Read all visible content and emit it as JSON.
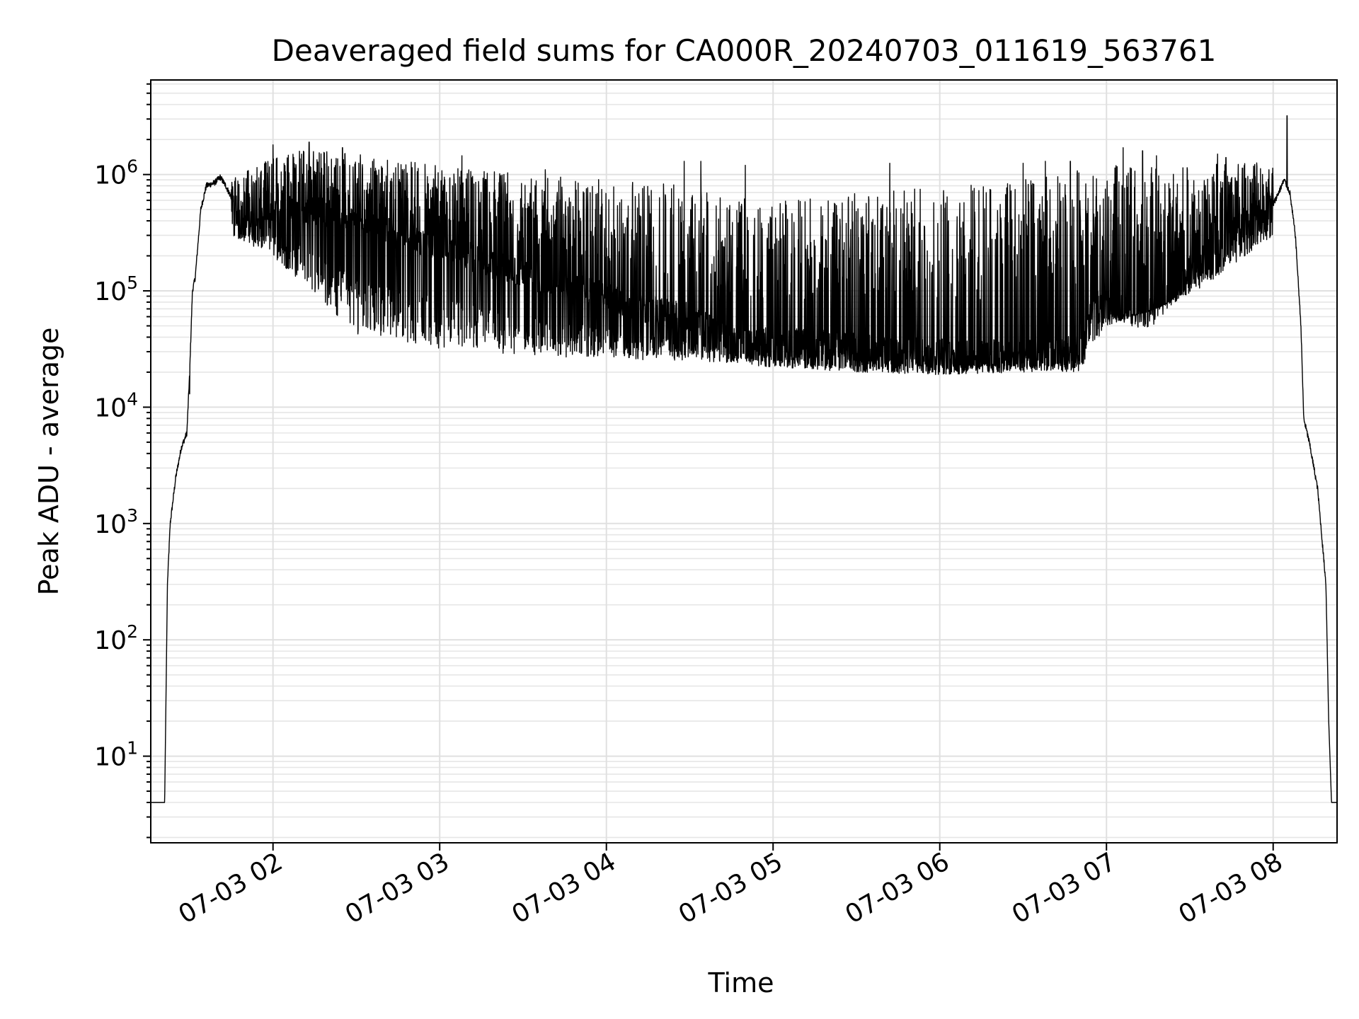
{
  "chart_data": {
    "type": "line",
    "title": "Deaveraged field sums for CA000R_20240703_011619_563761",
    "xlabel": "Time",
    "ylabel": "Peak ADU - average",
    "yscale": "log",
    "ylim": [
      1.8,
      6500000
    ],
    "xlim": [
      "07-03 01:16",
      "07-03 08:23"
    ],
    "grid": true,
    "legend": "none",
    "line_color": "#000000",
    "x_ticks": [
      {
        "label": "07-03 02",
        "value": "07-03 02:00"
      },
      {
        "label": "07-03 03",
        "value": "07-03 03:00"
      },
      {
        "label": "07-03 04",
        "value": "07-03 04:00"
      },
      {
        "label": "07-03 05",
        "value": "07-03 05:00"
      },
      {
        "label": "07-03 06",
        "value": "07-03 06:00"
      },
      {
        "label": "07-03 07",
        "value": "07-03 07:00"
      },
      {
        "label": "07-03 08",
        "value": "07-03 08:00"
      }
    ],
    "y_ticks": [
      {
        "base": "10",
        "exp": "1",
        "value": 10
      },
      {
        "base": "10",
        "exp": "2",
        "value": 100
      },
      {
        "base": "10",
        "exp": "3",
        "value": 1000
      },
      {
        "base": "10",
        "exp": "4",
        "value": 10000
      },
      {
        "base": "10",
        "exp": "5",
        "value": 100000
      },
      {
        "base": "10",
        "exp": "6",
        "value": 1000000
      }
    ],
    "series": [
      {
        "baseline": [
          [
            "07-03 01:16",
            4
          ],
          [
            "07-03 01:21",
            4
          ],
          [
            "07-03 01:22",
            300
          ],
          [
            "07-03 01:23",
            1000
          ],
          [
            "07-03 01:25",
            2500
          ],
          [
            "07-03 01:27",
            4500
          ],
          [
            "07-03 01:29",
            6000
          ],
          [
            "07-03 01:30",
            20000
          ],
          [
            "07-03 01:31",
            100000
          ],
          [
            "07-03 01:32",
            130000
          ],
          [
            "07-03 01:34",
            500000
          ],
          [
            "07-03 01:36",
            800000
          ],
          [
            "07-03 01:39",
            850000
          ],
          [
            "07-03 01:41",
            950000
          ],
          [
            "07-03 01:43",
            800000
          ],
          [
            "07-03 01:48",
            450000
          ],
          [
            "07-03 01:55",
            400000
          ],
          [
            "07-03 02:05",
            500000
          ],
          [
            "07-03 02:15",
            500000
          ],
          [
            "07-03 02:30",
            400000
          ],
          [
            "07-03 02:45",
            300000
          ],
          [
            "07-03 03:00",
            250000
          ],
          [
            "07-03 03:15",
            180000
          ],
          [
            "07-03 03:30",
            140000
          ],
          [
            "07-03 03:45",
            110000
          ],
          [
            "07-03 04:00",
            90000
          ],
          [
            "07-03 04:15",
            70000
          ],
          [
            "07-03 04:30",
            60000
          ],
          [
            "07-03 04:45",
            38000
          ],
          [
            "07-03 05:00",
            36000
          ],
          [
            "07-03 05:15",
            35000
          ],
          [
            "07-03 05:30",
            33000
          ],
          [
            "07-03 05:45",
            30000
          ],
          [
            "07-03 06:00",
            30000
          ],
          [
            "07-03 06:15",
            29000
          ],
          [
            "07-03 06:30",
            28000
          ],
          [
            "07-03 06:45",
            30000
          ],
          [
            "07-03 06:52",
            35000
          ],
          [
            "07-03 06:55",
            80000
          ],
          [
            "07-03 07:00",
            75000
          ],
          [
            "07-03 07:10",
            65000
          ],
          [
            "07-03 07:15",
            65000
          ],
          [
            "07-03 07:20",
            75000
          ],
          [
            "07-03 07:30",
            150000
          ],
          [
            "07-03 07:40",
            250000
          ],
          [
            "07-03 07:50",
            400000
          ],
          [
            "07-03 08:00",
            550000
          ],
          [
            "07-03 08:04",
            900000
          ],
          [
            "07-03 08:06",
            700000
          ],
          [
            "07-03 08:08",
            300000
          ],
          [
            "07-03 08:10",
            50000
          ],
          [
            "07-03 08:11",
            8000
          ],
          [
            "07-03 08:13",
            5000
          ],
          [
            "07-03 08:16",
            2000
          ],
          [
            "07-03 08:19",
            300
          ],
          [
            "07-03 08:20",
            20
          ],
          [
            "07-03 08:21",
            4
          ],
          [
            "07-03 08:23",
            4
          ]
        ],
        "envelope_top": [
          [
            "07-03 01:45",
            900000
          ],
          [
            "07-03 02:00",
            1500000
          ],
          [
            "07-03 02:15",
            1700000
          ],
          [
            "07-03 02:30",
            1500000
          ],
          [
            "07-03 03:00",
            1200000
          ],
          [
            "07-03 03:30",
            1000000
          ],
          [
            "07-03 04:00",
            900000
          ],
          [
            "07-03 04:30",
            800000
          ],
          [
            "07-03 05:00",
            600000
          ],
          [
            "07-03 05:30",
            700000
          ],
          [
            "07-03 06:00",
            800000
          ],
          [
            "07-03 06:30",
            900000
          ],
          [
            "07-03 07:00",
            1200000
          ],
          [
            "07-03 07:30",
            1200000
          ],
          [
            "07-03 08:00",
            1300000
          ]
        ],
        "envelope_bottom": [
          [
            "07-03 01:45",
            300000
          ],
          [
            "07-03 02:00",
            200000
          ],
          [
            "07-03 02:15",
            90000
          ],
          [
            "07-03 02:30",
            42000
          ],
          [
            "07-03 03:00",
            32000
          ],
          [
            "07-03 03:30",
            28000
          ],
          [
            "07-03 04:00",
            26000
          ],
          [
            "07-03 04:30",
            25000
          ],
          [
            "07-03 05:00",
            22000
          ],
          [
            "07-03 05:30",
            20000
          ],
          [
            "07-03 06:00",
            19000
          ],
          [
            "07-03 06:30",
            20000
          ],
          [
            "07-03 06:50",
            20000
          ],
          [
            "07-03 07:00",
            50000
          ],
          [
            "07-03 07:30",
            90000
          ],
          [
            "07-03 08:00",
            300000
          ]
        ],
        "spikes": [
          [
            "07-03 01:30",
            13000
          ],
          [
            "07-03 02:00",
            1800000
          ],
          [
            "07-03 02:13",
            1900000
          ],
          [
            "07-03 02:25",
            1700000
          ],
          [
            "07-03 03:08",
            1450000
          ],
          [
            "07-03 03:38",
            1100000
          ],
          [
            "07-03 04:28",
            1300000
          ],
          [
            "07-03 04:34",
            1300000
          ],
          [
            "07-03 04:50",
            1200000
          ],
          [
            "07-03 05:42",
            1250000
          ],
          [
            "07-03 06:30",
            1250000
          ],
          [
            "07-03 06:38",
            1300000
          ],
          [
            "07-03 06:47",
            1300000
          ],
          [
            "07-03 07:06",
            1700000
          ],
          [
            "07-03 07:13",
            1600000
          ],
          [
            "07-03 07:18",
            1450000
          ],
          [
            "07-03 07:40",
            1500000
          ],
          [
            "07-03 07:43",
            1400000
          ],
          [
            "07-03 08:05",
            3200000
          ]
        ]
      }
    ]
  }
}
